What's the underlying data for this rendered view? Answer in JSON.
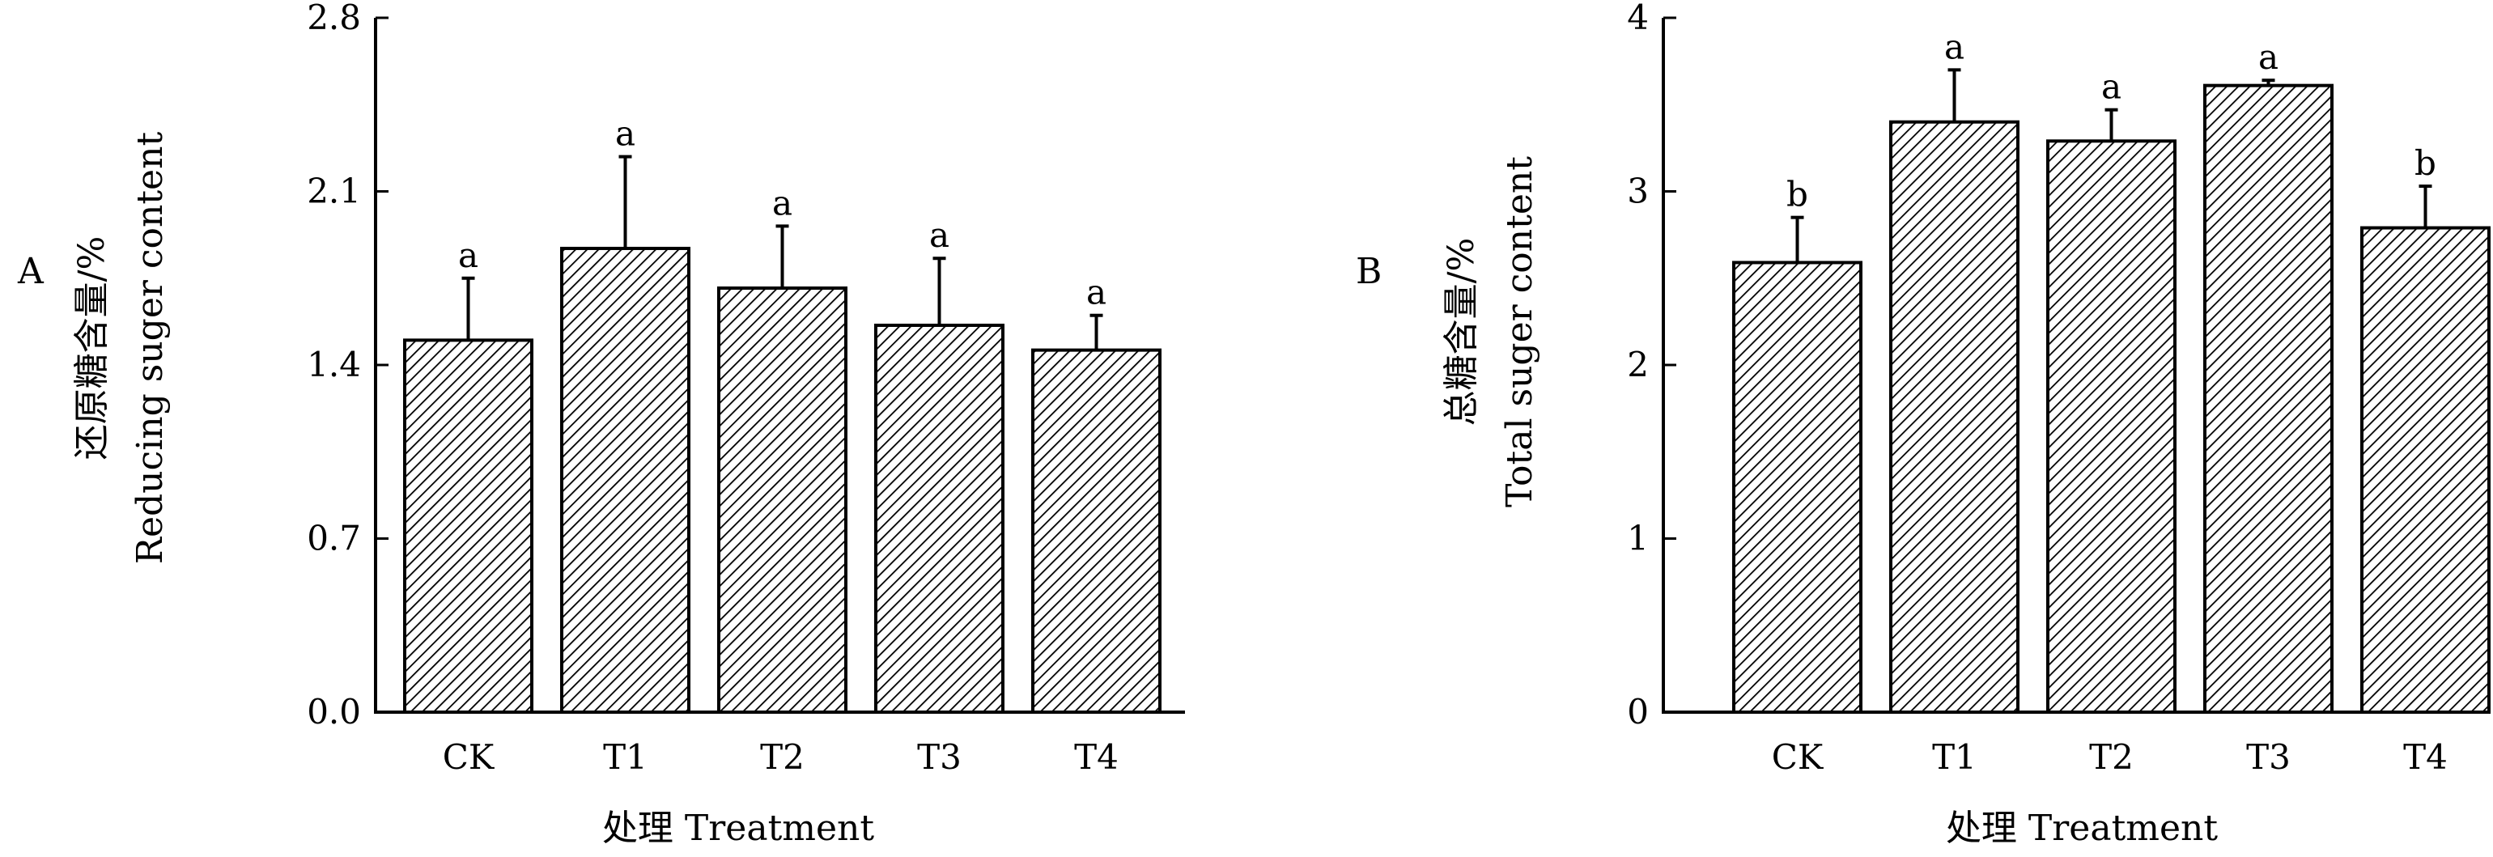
{
  "chart_data": [
    {
      "type": "bar",
      "panel_label": "A",
      "categories": [
        "CK",
        "T1",
        "T2",
        "T3",
        "T4"
      ],
      "values": [
        1.5,
        1.87,
        1.71,
        1.56,
        1.46
      ],
      "error": [
        0.25,
        0.37,
        0.25,
        0.27,
        0.14
      ],
      "significance": [
        "a",
        "a",
        "a",
        "a",
        "a"
      ],
      "ylabel_zh": "还原糖含量/%",
      "ylabel_en": "Reducing suger content",
      "xlabel": "处理 Treatment",
      "ylim": [
        0,
        2.8
      ],
      "yticks": [
        "0.0",
        "0.7",
        "1.4",
        "2.1",
        "2.8"
      ],
      "bar_fill": "diagonal-hatch",
      "grid": false,
      "legend": "none"
    },
    {
      "type": "bar",
      "panel_label": "B",
      "categories": [
        "CK",
        "T1",
        "T2",
        "T3",
        "T4"
      ],
      "values": [
        2.59,
        3.4,
        3.29,
        3.61,
        2.79
      ],
      "error": [
        0.26,
        0.3,
        0.18,
        0.03,
        0.24
      ],
      "significance": [
        "b",
        "a",
        "a",
        "a",
        "b"
      ],
      "ylabel_zh": "总糖含量/%",
      "ylabel_en": "Total suger content",
      "xlabel": "处理 Treatment",
      "ylim": [
        0,
        4
      ],
      "yticks": [
        "0",
        "1",
        "2",
        "3",
        "4"
      ],
      "bar_fill": "diagonal-hatch",
      "grid": false,
      "legend": "none"
    }
  ],
  "colors": {
    "ink": "#000000",
    "background": "#ffffff"
  }
}
